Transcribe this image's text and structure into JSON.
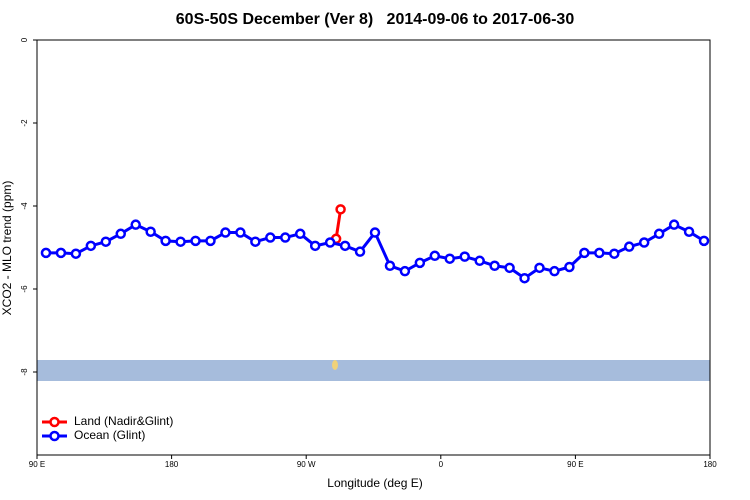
{
  "chart_data": {
    "type": "line",
    "title": "60S-50S December (Ver 8)   2014-09-06 to 2017-06-30",
    "xlabel": "Longitude (deg E)",
    "ylabel": "XCO2 - MLO trend (ppm)",
    "xlim": [
      90,
      540
    ],
    "ylim": [
      -10,
      0
    ],
    "xticks": [
      {
        "value": 90,
        "label": "90 E"
      },
      180,
      {
        "value": 270,
        "label": "90 W"
      },
      {
        "value": 360,
        "label": "0"
      },
      {
        "value": 450,
        "label": "90 E"
      },
      {
        "value": 540,
        "label": "180"
      }
    ],
    "yticks": [
      0,
      -2,
      -4,
      -6,
      -8
    ],
    "legend": "bottom-left",
    "series": [
      {
        "name": "Land (Nadir&Glint)",
        "color": "#ff0000",
        "x": [
          290,
          293
        ],
        "values": [
          -4.79,
          -4.08
        ]
      },
      {
        "name": "Ocean (Glint)",
        "color": "#0000ff",
        "x": [
          96,
          106,
          116,
          126,
          136,
          146,
          156,
          166,
          176,
          186,
          196,
          206,
          216,
          226,
          236,
          246,
          256,
          266,
          276,
          286,
          296,
          306,
          316,
          326,
          336,
          346,
          356,
          366,
          376,
          386,
          396,
          406,
          416,
          426,
          436,
          446,
          456,
          466,
          476,
          486,
          496,
          506,
          516,
          526,
          536
        ],
        "values": [
          -5.13,
          -5.13,
          -5.15,
          -4.96,
          -4.86,
          -4.67,
          -4.45,
          -4.62,
          -4.84,
          -4.86,
          -4.84,
          -4.84,
          -4.64,
          -4.64,
          -4.86,
          -4.76,
          -4.76,
          -4.67,
          -4.96,
          -4.88,
          -4.96,
          -5.1,
          -4.64,
          -5.44,
          -5.57,
          -5.37,
          -5.2,
          -5.27,
          -5.22,
          -5.32,
          -5.44,
          -5.49,
          -5.74,
          -5.49,
          -5.57,
          -5.47,
          -5.13,
          -5.13,
          -5.15,
          -4.98,
          -4.88,
          -4.67,
          -4.45,
          -4.62,
          -4.84
        ]
      }
    ]
  }
}
